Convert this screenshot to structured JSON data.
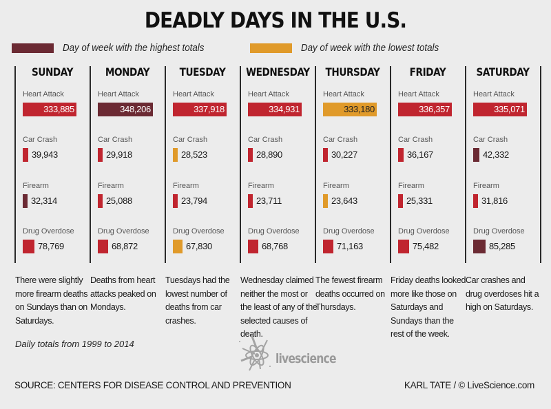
{
  "header": {
    "title": "DEADLY DAYS IN THE U.S."
  },
  "legend": [
    {
      "label": "Day of week with the highest totals",
      "color": "#6b2a33"
    },
    {
      "label": "Day of week with the lowest totals",
      "color": "#e09a2a"
    }
  ],
  "colors": {
    "normal": "#c0252f",
    "highest": "#6b2a33",
    "lowest": "#e09a2a"
  },
  "chart_data": {
    "type": "bar",
    "title": "DEADLY DAYS IN THE U.S.",
    "subtitle": "Daily totals from 1999 to 2014",
    "categories": [
      "SUNDAY",
      "MONDAY",
      "TUESDAY",
      "WEDNESDAY",
      "THURSDAY",
      "FRIDAY",
      "SATURDAY"
    ],
    "series": [
      {
        "name": "Heart Attack",
        "values": [
          333885,
          348206,
          337918,
          334931,
          333180,
          336357,
          335071
        ],
        "labels": [
          "333,885",
          "348,206",
          "337,918",
          "334,931",
          "333,180",
          "336,357",
          "335,071"
        ],
        "highlight": [
          "normal",
          "highest",
          "normal",
          "normal",
          "lowest",
          "normal",
          "normal"
        ]
      },
      {
        "name": "Car Crash",
        "values": [
          39943,
          29918,
          28523,
          28890,
          30227,
          36167,
          42332
        ],
        "labels": [
          "39,943",
          "29,918",
          "28,523",
          "28,890",
          "30,227",
          "36,167",
          "42,332"
        ],
        "highlight": [
          "normal",
          "normal",
          "lowest",
          "normal",
          "normal",
          "normal",
          "highest"
        ]
      },
      {
        "name": "Firearm",
        "values": [
          32314,
          25088,
          23794,
          23711,
          23643,
          25331,
          31816
        ],
        "labels": [
          "32,314",
          "25,088",
          "23,794",
          "23,711",
          "23,643",
          "25,331",
          "31,816"
        ],
        "highlight": [
          "highest",
          "normal",
          "normal",
          "normal",
          "lowest",
          "normal",
          "normal"
        ]
      },
      {
        "name": "Drug Overdose",
        "values": [
          78769,
          68872,
          67830,
          68768,
          71163,
          75482,
          85285
        ],
        "labels": [
          "78,769",
          "68,872",
          "67,830",
          "68,768",
          "71,163",
          "75,482",
          "85,285"
        ],
        "highlight": [
          "normal",
          "normal",
          "lowest",
          "normal",
          "normal",
          "normal",
          "highest"
        ]
      }
    ],
    "legend": [
      "Day of week with the highest totals",
      "Day of week with the lowest totals"
    ],
    "legend_position": "top-left"
  },
  "notes": [
    "There were slightly more firearm deaths on Sundays than on Saturdays.",
    "Deaths from heart attacks peaked on Mondays.",
    "Tuesdays had the lowest number of deaths from car crashes.",
    "Wednesday claimed neither the most or the least of any of the selected causes of death.",
    "The fewest firearm deaths occurred on Thursdays.",
    "Friday deaths looked more like those on Saturdays and Sundays than the rest of the week.",
    "Car crashes and drug overdoses hit a high on Saturdays."
  ],
  "footer": {
    "daily_totals": "Daily totals from 1999 to 2014",
    "logo_text": "livescience",
    "source": "SOURCE: CENTERS FOR DISEASE CONTROL AND PREVENTION",
    "credit": "KARL TATE / © LiveScience.com"
  }
}
